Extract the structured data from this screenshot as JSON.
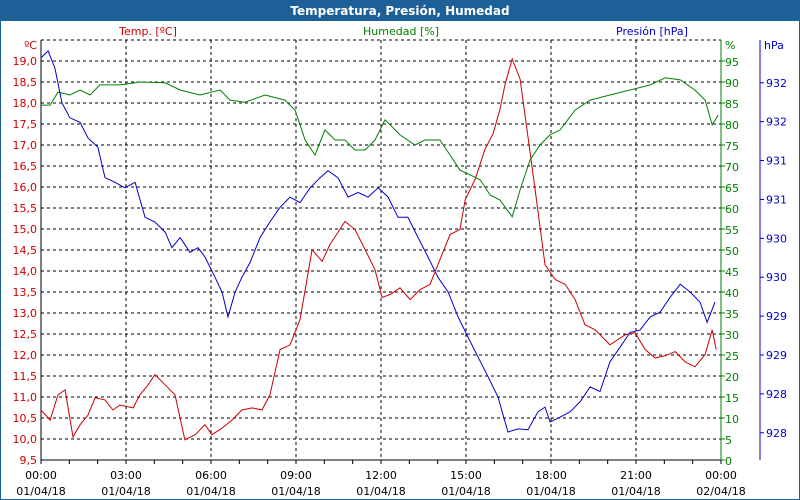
{
  "window": {
    "title": "Temperatura, Presión, Humedad"
  },
  "colors": {
    "temp": "#cc0000",
    "humidity": "#008000",
    "pressure": "#0000cc",
    "titlebar": "#1d5f97"
  },
  "chart_data": {
    "type": "line",
    "title": "Temperatura, Presión, Humedad",
    "legend": [
      "Temp. [ºC]",
      "Humedad [%]",
      "Presión [hPa]"
    ],
    "x_ticks": [
      {
        "hour": 0,
        "time": "00:00",
        "date": "01/04/18"
      },
      {
        "hour": 3,
        "time": "03:00",
        "date": "01/04/18"
      },
      {
        "hour": 6,
        "time": "06:00",
        "date": "01/04/18"
      },
      {
        "hour": 9,
        "time": "09:00",
        "date": "01/04/18"
      },
      {
        "hour": 12,
        "time": "12:00",
        "date": "01/04/18"
      },
      {
        "hour": 15,
        "time": "15:00",
        "date": "01/04/18"
      },
      {
        "hour": 18,
        "time": "18:00",
        "date": "01/04/18"
      },
      {
        "hour": 21,
        "time": "21:00",
        "date": "01/04/18"
      },
      {
        "hour": 24,
        "time": "00:00",
        "date": "02/04/18"
      }
    ],
    "xlim": [
      0,
      24
    ],
    "grid": true,
    "axes": {
      "temp": {
        "unit": "ºC",
        "ylim": [
          9.5,
          19.5
        ],
        "ticks": [
          "9,5",
          "10,0",
          "10,5",
          "11,0",
          "11,5",
          "12,0",
          "12,5",
          "13,0",
          "13,5",
          "14,0",
          "14,5",
          "15,0",
          "15,5",
          "16,0",
          "16,5",
          "17,0",
          "17,5",
          "18,0",
          "18,5",
          "19,0"
        ]
      },
      "humidity": {
        "unit": "%",
        "ylim": [
          0,
          100
        ],
        "ticks": [
          "0",
          "5",
          "10",
          "15",
          "20",
          "25",
          "30",
          "35",
          "40",
          "45",
          "50",
          "55",
          "60",
          "65",
          "70",
          "75",
          "80",
          "85",
          "90",
          "95"
        ]
      },
      "pressure": {
        "unit": "hPa",
        "ylim": [
          927.4,
          932.8
        ],
        "tick_values": [
          927.75,
          928.25,
          928.75,
          929.25,
          929.75,
          930.25,
          930.75,
          931.25,
          931.75,
          932.25
        ],
        "ticks": [
          "928",
          "928",
          "929",
          "929",
          "930",
          "930",
          "931",
          "931",
          "932",
          "932"
        ]
      }
    },
    "series": [
      {
        "name": "Temp. [ºC]",
        "axis": "temp",
        "points": [
          [
            0,
            10.69
          ],
          [
            0.32,
            10.45
          ],
          [
            0.6,
            11.05
          ],
          [
            0.85,
            11.17
          ],
          [
            1.13,
            10.05
          ],
          [
            1.38,
            10.34
          ],
          [
            1.66,
            10.57
          ],
          [
            1.91,
            10.98
          ],
          [
            2.26,
            10.93
          ],
          [
            2.54,
            10.69
          ],
          [
            2.79,
            10.81
          ],
          [
            3.25,
            10.74
          ],
          [
            3.49,
            11.05
          ],
          [
            3.78,
            11.29
          ],
          [
            4.02,
            11.53
          ],
          [
            4.38,
            11.29
          ],
          [
            4.73,
            11.05
          ],
          [
            5.08,
            9.98
          ],
          [
            5.44,
            10.1
          ],
          [
            5.79,
            10.34
          ],
          [
            6.03,
            10.1
          ],
          [
            6.39,
            10.26
          ],
          [
            6.74,
            10.45
          ],
          [
            7.09,
            10.69
          ],
          [
            7.45,
            10.74
          ],
          [
            7.8,
            10.69
          ],
          [
            8.08,
            11.05
          ],
          [
            8.44,
            12.13
          ],
          [
            8.79,
            12.24
          ],
          [
            9.14,
            12.84
          ],
          [
            9.57,
            14.51
          ],
          [
            9.92,
            14.23
          ],
          [
            10.2,
            14.63
          ],
          [
            10.55,
            14.99
          ],
          [
            10.73,
            15.18
          ],
          [
            11.08,
            14.99
          ],
          [
            11.44,
            14.51
          ],
          [
            11.79,
            14.03
          ],
          [
            12.04,
            13.37
          ],
          [
            12.32,
            13.44
          ],
          [
            12.67,
            13.6
          ],
          [
            13.03,
            13.32
          ],
          [
            13.38,
            13.56
          ],
          [
            13.73,
            13.68
          ],
          [
            14.08,
            14.27
          ],
          [
            14.44,
            14.87
          ],
          [
            14.79,
            14.99
          ],
          [
            14.97,
            15.7
          ],
          [
            15.32,
            16.18
          ],
          [
            15.67,
            16.9
          ],
          [
            15.95,
            17.26
          ],
          [
            16.2,
            17.85
          ],
          [
            16.38,
            18.45
          ],
          [
            16.63,
            19.05
          ],
          [
            16.91,
            18.57
          ],
          [
            17.15,
            17.38
          ],
          [
            17.44,
            15.94
          ],
          [
            17.79,
            14.15
          ],
          [
            18.14,
            13.8
          ],
          [
            18.5,
            13.68
          ],
          [
            18.85,
            13.32
          ],
          [
            19.2,
            12.72
          ],
          [
            19.56,
            12.6
          ],
          [
            20.08,
            12.24
          ],
          [
            20.61,
            12.48
          ],
          [
            20.97,
            12.53
          ],
          [
            21.32,
            12.13
          ],
          [
            21.67,
            11.93
          ],
          [
            22.03,
            11.98
          ],
          [
            22.38,
            12.08
          ],
          [
            22.73,
            11.84
          ],
          [
            23.08,
            11.72
          ],
          [
            23.44,
            12.01
          ],
          [
            23.69,
            12.6
          ],
          [
            23.83,
            12.13
          ]
        ]
      },
      {
        "name": "Humedad [%]",
        "axis": "humidity",
        "points": [
          [
            0,
            84.5
          ],
          [
            0.32,
            84.5
          ],
          [
            0.6,
            87.6
          ],
          [
            1.02,
            86.9
          ],
          [
            1.38,
            88.1
          ],
          [
            1.73,
            86.9
          ],
          [
            2.08,
            89.3
          ],
          [
            2.79,
            89.3
          ],
          [
            3.49,
            90
          ],
          [
            4.38,
            89.8
          ],
          [
            4.91,
            88.1
          ],
          [
            5.61,
            86.9
          ],
          [
            6.32,
            88.1
          ],
          [
            6.67,
            85.7
          ],
          [
            7.2,
            85.2
          ],
          [
            7.91,
            86.9
          ],
          [
            8.61,
            85.7
          ],
          [
            8.97,
            83.3
          ],
          [
            9.32,
            76.2
          ],
          [
            9.67,
            72.6
          ],
          [
            10.02,
            78.6
          ],
          [
            10.38,
            76.2
          ],
          [
            10.73,
            76.2
          ],
          [
            11.08,
            73.8
          ],
          [
            11.44,
            73.8
          ],
          [
            11.79,
            76.2
          ],
          [
            12.14,
            81
          ],
          [
            12.32,
            79.8
          ],
          [
            12.67,
            77.4
          ],
          [
            13.2,
            75
          ],
          [
            13.55,
            76.2
          ],
          [
            14.08,
            76.2
          ],
          [
            14.44,
            72.6
          ],
          [
            14.79,
            69
          ],
          [
            15.14,
            67.9
          ],
          [
            15.5,
            66.7
          ],
          [
            15.85,
            63.1
          ],
          [
            16.2,
            61.9
          ],
          [
            16.63,
            57.9
          ],
          [
            16.91,
            64.3
          ],
          [
            17.26,
            71.4
          ],
          [
            17.61,
            75
          ],
          [
            17.96,
            77.4
          ],
          [
            18.32,
            78.6
          ],
          [
            18.85,
            83.3
          ],
          [
            19.38,
            85.7
          ],
          [
            20.08,
            86.9
          ],
          [
            20.79,
            88.1
          ],
          [
            21.5,
            89.3
          ],
          [
            22.03,
            91
          ],
          [
            22.56,
            90.5
          ],
          [
            23.08,
            88.1
          ],
          [
            23.44,
            85.7
          ],
          [
            23.69,
            79.8
          ],
          [
            23.9,
            82.1
          ]
        ]
      },
      {
        "name": "Presión [hPa]",
        "axis": "pressure",
        "points": [
          [
            0,
            932.57
          ],
          [
            0.25,
            932.66
          ],
          [
            0.49,
            932.44
          ],
          [
            0.74,
            931.99
          ],
          [
            1.02,
            931.8
          ],
          [
            1.38,
            931.74
          ],
          [
            1.66,
            931.54
          ],
          [
            2.01,
            931.42
          ],
          [
            2.26,
            931.03
          ],
          [
            2.61,
            930.97
          ],
          [
            2.96,
            930.9
          ],
          [
            3.32,
            930.97
          ],
          [
            3.67,
            930.52
          ],
          [
            4.02,
            930.46
          ],
          [
            4.38,
            930.33
          ],
          [
            4.62,
            930.13
          ],
          [
            4.91,
            930.26
          ],
          [
            5.26,
            930.07
          ],
          [
            5.54,
            930.13
          ],
          [
            5.79,
            930.01
          ],
          [
            6.14,
            929.75
          ],
          [
            6.39,
            929.56
          ],
          [
            6.6,
            929.24
          ],
          [
            6.85,
            929.56
          ],
          [
            7.09,
            929.75
          ],
          [
            7.38,
            929.94
          ],
          [
            7.73,
            930.26
          ],
          [
            8.08,
            930.46
          ],
          [
            8.44,
            930.65
          ],
          [
            8.79,
            930.78
          ],
          [
            9.14,
            930.71
          ],
          [
            9.5,
            930.9
          ],
          [
            9.85,
            931.03
          ],
          [
            10.13,
            931.12
          ],
          [
            10.48,
            931.03
          ],
          [
            10.84,
            930.78
          ],
          [
            11.19,
            930.84
          ],
          [
            11.54,
            930.78
          ],
          [
            11.9,
            930.9
          ],
          [
            12.25,
            930.78
          ],
          [
            12.6,
            930.52
          ],
          [
            12.95,
            930.52
          ],
          [
            13.31,
            930.26
          ],
          [
            13.66,
            930.01
          ],
          [
            14.01,
            929.75
          ],
          [
            14.37,
            929.56
          ],
          [
            14.72,
            929.24
          ],
          [
            15.07,
            928.98
          ],
          [
            15.43,
            928.72
          ],
          [
            15.78,
            928.47
          ],
          [
            16.13,
            928.21
          ],
          [
            16.48,
            927.76
          ],
          [
            16.84,
            927.8
          ],
          [
            17.19,
            927.79
          ],
          [
            17.54,
            928.02
          ],
          [
            17.79,
            928.08
          ],
          [
            17.97,
            927.89
          ],
          [
            18.32,
            927.95
          ],
          [
            18.67,
            928.02
          ],
          [
            19.03,
            928.15
          ],
          [
            19.38,
            928.34
          ],
          [
            19.73,
            928.28
          ],
          [
            20.08,
            928.66
          ],
          [
            20.44,
            928.85
          ],
          [
            20.79,
            929.04
          ],
          [
            21.14,
            929.07
          ],
          [
            21.5,
            929.24
          ],
          [
            21.85,
            929.3
          ],
          [
            22.2,
            929.49
          ],
          [
            22.56,
            929.66
          ],
          [
            22.91,
            929.56
          ],
          [
            23.26,
            929.43
          ],
          [
            23.51,
            929.17
          ],
          [
            23.79,
            929.43
          ]
        ]
      }
    ]
  }
}
